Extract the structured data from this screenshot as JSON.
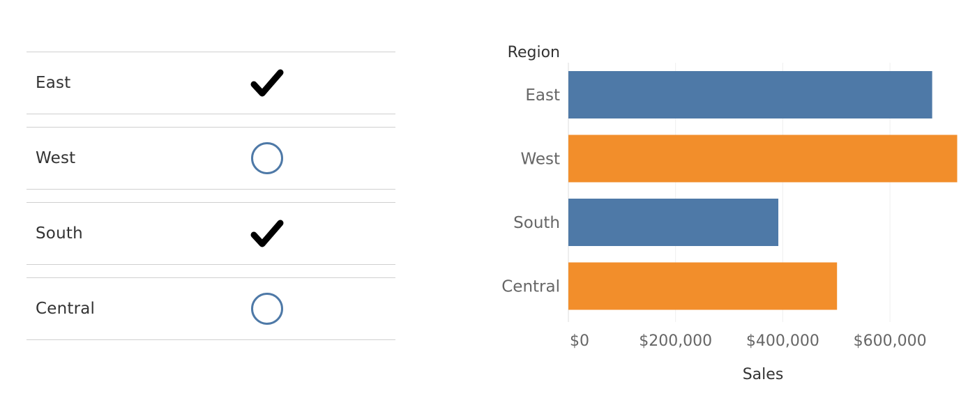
{
  "filter": {
    "items": [
      {
        "label": "East",
        "checked": true
      },
      {
        "label": "West",
        "checked": false
      },
      {
        "label": "South",
        "checked": true
      },
      {
        "label": "Central",
        "checked": false
      }
    ],
    "check_icon": "checkmark-icon",
    "unchecked_icon": "circle-icon",
    "colors": {
      "check": "#000000",
      "circle": "#4e79a7"
    }
  },
  "chart_data": {
    "type": "bar",
    "orientation": "horizontal",
    "categories": [
      "East",
      "West",
      "South",
      "Central"
    ],
    "values": [
      678781,
      725458,
      391722,
      501240
    ],
    "colors": [
      "#4e79a7",
      "#f28e2b",
      "#4e79a7",
      "#f28e2b"
    ],
    "xlabel": "Sales",
    "ylabel": "Region",
    "xlim": [
      0,
      730000
    ],
    "xticks": [
      0,
      200000,
      400000,
      600000
    ],
    "xtick_labels": [
      "$0",
      "$200,000",
      "$400,000",
      "$600,000"
    ],
    "grid": true
  }
}
